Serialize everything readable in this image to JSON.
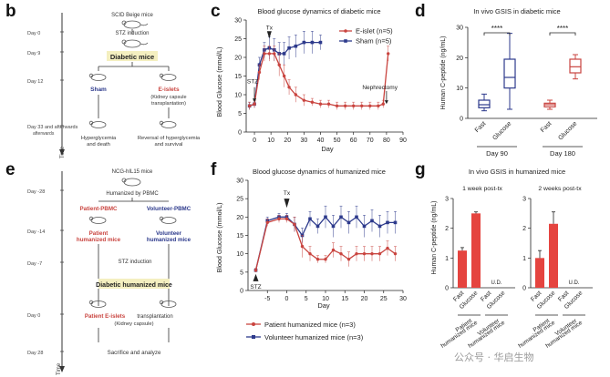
{
  "letters": {
    "b": "b",
    "c": "c",
    "d": "d",
    "e": "e",
    "f": "f",
    "g": "g"
  },
  "panel_b": {
    "days": [
      "Day 0",
      "Day 9",
      "Day 12",
      "Day 33 and afterwards"
    ],
    "time": "Time",
    "top": "SCID Beige mice",
    "stz": "STZ induction",
    "diabetic": "Diabetic mice",
    "sham": "Sham",
    "eislets": "E-islets",
    "eislets_note": [
      "(Kidney capsule",
      "transplantation)"
    ],
    "outcome_left": [
      "Hyperglycemia",
      "and death"
    ],
    "outcome_right": [
      "Reversal of hyperglycemia",
      "and survival"
    ]
  },
  "panel_e": {
    "days": [
      "Day -28",
      "Day -14",
      "Day -7",
      "Day 0",
      "Day 28"
    ],
    "time": "Time",
    "top": "NCG-hIL15 mice",
    "humanized": "Humanized by PBMC",
    "patient_pbmc": "Patient-PBMC",
    "volunteer_pbmc": "Volunteer-PBMC",
    "patient_mice": [
      "Patient",
      "humanized mice"
    ],
    "volunteer_mice": [
      "Volunteer",
      "humanized mice"
    ],
    "stz": "STZ induction",
    "diabetic": "Diabetic humanized mice",
    "patient_eislets": "Patient E-islets",
    "transplant": "transplantation",
    "capsule": "(Kidney capsule)",
    "sacrifice": "Sacrifice and analyze"
  },
  "chart_data": [
    {
      "id": "c",
      "type": "line",
      "title": "Blood glucose dynamics of diabetic mice",
      "xlabel": "Day",
      "ylabel": "Blood Glucose (mmol/L)",
      "xlim": [
        -5,
        90
      ],
      "ylim": [
        0,
        30
      ],
      "xticks": [
        0,
        10,
        20,
        30,
        40,
        50,
        60,
        70,
        80,
        90
      ],
      "yticks": [
        0,
        5,
        10,
        15,
        20,
        25,
        30
      ],
      "annotations": [
        "STZ",
        "Tx",
        "Nephrectomy"
      ],
      "legend_position": "top-right",
      "series": [
        {
          "name": "E-islet (n=5)",
          "color": "#c9443f",
          "x": [
            -3,
            0,
            3,
            6,
            9,
            12,
            15,
            18,
            21,
            25,
            30,
            35,
            40,
            45,
            50,
            55,
            60,
            65,
            70,
            75,
            78,
            81
          ],
          "y": [
            7,
            7.5,
            16,
            21,
            21,
            21,
            18,
            15,
            12,
            10,
            8.5,
            8,
            7.5,
            7.5,
            7,
            7,
            7,
            7,
            7,
            7,
            7.5,
            21
          ],
          "err": [
            1,
            1,
            2,
            2,
            2,
            2,
            3,
            3,
            2,
            2,
            1.5,
            1,
            1,
            1,
            1,
            1,
            1,
            1,
            1,
            1,
            1,
            2
          ]
        },
        {
          "name": "Sham (n=5)",
          "color": "#2d3a8c",
          "x": [
            -3,
            0,
            3,
            6,
            9,
            12,
            15,
            18,
            21,
            25,
            30,
            35,
            40
          ],
          "y": [
            7,
            7.5,
            18,
            22,
            22.5,
            22,
            21,
            21,
            22.5,
            23,
            24,
            24,
            24
          ],
          "err": [
            1,
            1,
            2,
            2,
            3,
            3,
            3,
            3,
            3,
            3,
            3,
            3,
            2
          ]
        }
      ]
    },
    {
      "id": "d",
      "type": "box",
      "title": "In vivo GSIS in diabetic mice",
      "ylabel": "Human C-peptide (ng/mL)",
      "ylim": [
        0,
        30
      ],
      "yticks": [
        0,
        10,
        20,
        30
      ],
      "groups": [
        "Day 90",
        "Day 180"
      ],
      "categories": [
        "Fast",
        "Glucose",
        "Fast",
        "Glucose"
      ],
      "significance": [
        "****",
        "****"
      ],
      "boxes": [
        {
          "group": "Day 90",
          "category": "Fast",
          "color": "#2d3a8c",
          "min": 2.5,
          "q1": 3.5,
          "median": 4.5,
          "q3": 6,
          "max": 8
        },
        {
          "group": "Day 90",
          "category": "Glucose",
          "color": "#2d3a8c",
          "min": 3,
          "q1": 10,
          "median": 13.5,
          "q3": 19.5,
          "max": 28
        },
        {
          "group": "Day 180",
          "category": "Fast",
          "color": "#c9443f",
          "min": 3,
          "q1": 3.8,
          "median": 4.5,
          "q3": 5,
          "max": 6
        },
        {
          "group": "Day 180",
          "category": "Glucose",
          "color": "#c9443f",
          "min": 13,
          "q1": 15,
          "median": 17,
          "q3": 19.5,
          "max": 21
        }
      ]
    },
    {
      "id": "f",
      "type": "line",
      "title": "Blood glucose dynamics of humanized mice",
      "xlabel": "Day",
      "ylabel": "Blood Glucose (mmol/L)",
      "xlim": [
        -10,
        30
      ],
      "ylim": [
        0,
        30
      ],
      "xticks": [
        -5,
        0,
        5,
        10,
        15,
        20,
        25,
        30
      ],
      "yticks": [
        0,
        5,
        10,
        15,
        20,
        25,
        30
      ],
      "annotations": [
        "STZ",
        "Tx"
      ],
      "legend_position": "bottom",
      "series": [
        {
          "name": "Patient humanized mice (n=3)",
          "color": "#c9443f",
          "x": [
            -8,
            -5,
            -2,
            0,
            2,
            4,
            6,
            8,
            10,
            12,
            14,
            16,
            18,
            20,
            22,
            24,
            26,
            28
          ],
          "y": [
            5.5,
            18.5,
            19.5,
            19.5,
            18,
            12,
            10,
            8.5,
            8.5,
            11,
            10,
            8.5,
            10,
            10,
            10,
            10,
            11.5,
            10
          ],
          "err": [
            0.5,
            1,
            1,
            1,
            2,
            3,
            2,
            1,
            1,
            2,
            2,
            2,
            2,
            2,
            2,
            2,
            2,
            2
          ]
        },
        {
          "name": "Volunteer humanized mice (n=3)",
          "color": "#2d3a8c",
          "x": [
            -8,
            -5,
            -2,
            0,
            2,
            4,
            6,
            8,
            10,
            12,
            14,
            16,
            18,
            20,
            22,
            24,
            26,
            28
          ],
          "y": [
            5.5,
            19,
            20,
            20,
            18,
            15,
            19.5,
            17.5,
            20,
            17.5,
            20,
            18.5,
            20,
            17.5,
            19,
            17.5,
            18.5,
            18.5
          ],
          "err": [
            0.5,
            1,
            1,
            1,
            2,
            2,
            2,
            2,
            3,
            3,
            3,
            3,
            3,
            3,
            3,
            3,
            3,
            3
          ]
        }
      ]
    },
    {
      "id": "g",
      "type": "bar",
      "title": "In vivo GSIS in humanized mice",
      "ylabel": "Human C-peptide (ng/mL)",
      "ylim": [
        0,
        3
      ],
      "yticks": [
        0,
        1,
        2,
        3
      ],
      "facets": [
        {
          "label": "1 week post-tx",
          "categories": [
            "Fast",
            "Glucose",
            "Fast",
            "Glucose"
          ],
          "values": [
            1.25,
            2.5,
            null,
            null
          ],
          "errors": [
            0.1,
            0.05,
            null,
            null
          ],
          "nd_label": "U.D."
        },
        {
          "label": "2 weeks post-tx",
          "categories": [
            "Fast",
            "Glucose",
            "Fast",
            "Glucose"
          ],
          "values": [
            1.0,
            2.15,
            null,
            null
          ],
          "errors": [
            0.25,
            0.4,
            null,
            null
          ],
          "nd_label": "U.D."
        }
      ],
      "groups": [
        [
          "Patient",
          "humanized mice"
        ],
        [
          "Volunteer",
          "humanized mice"
        ]
      ],
      "bar_color": "#e5443f"
    }
  ],
  "watermark": "公众号 · 华启生物"
}
